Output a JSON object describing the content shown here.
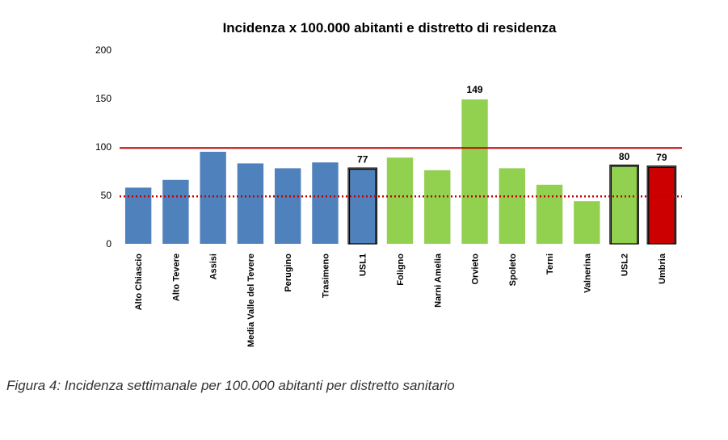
{
  "chart_data": {
    "type": "bar",
    "title": "Incidenza x 100.000 abitanti e distretto di residenza",
    "xlabel": "",
    "ylabel": "",
    "ylim": [
      0,
      200
    ],
    "yticks": [
      0,
      50,
      100,
      150,
      200
    ],
    "categories": [
      "Alto Chiascio",
      "Alto Tevere",
      "Assisi",
      "Media Valle del Tevere",
      "Perugino",
      "Trasimeno",
      "USL1",
      "Foligno",
      "Narni Amelia",
      "Orvieto",
      "Spoleto",
      "Terni",
      "Valnerina",
      "USL2",
      "Umbria"
    ],
    "values": [
      58,
      66,
      95,
      83,
      78,
      84,
      77,
      89,
      76,
      149,
      78,
      61,
      44,
      80,
      79
    ],
    "bar_colors": [
      "#4f81bd",
      "#4f81bd",
      "#4f81bd",
      "#4f81bd",
      "#4f81bd",
      "#4f81bd",
      "#4f81bd",
      "#92d050",
      "#92d050",
      "#92d050",
      "#92d050",
      "#92d050",
      "#92d050",
      "#92d050",
      "#cc0000"
    ],
    "highlighted": [
      false,
      false,
      false,
      false,
      false,
      false,
      true,
      false,
      false,
      false,
      false,
      false,
      false,
      true,
      true
    ],
    "data_labels": [
      "",
      "",
      "",
      "",
      "",
      "",
      "77",
      "",
      "",
      "149",
      "",
      "",
      "",
      "80",
      "79"
    ],
    "reference_lines": [
      {
        "value": 99,
        "style": "solid",
        "color": "#c00000"
      },
      {
        "value": 49,
        "style": "dotted",
        "color": "#c00000"
      }
    ],
    "grid": false,
    "legend": "none"
  },
  "caption": "Figura 4: Incidenza settimanale per 100.000 abitanti per distretto sanitario"
}
